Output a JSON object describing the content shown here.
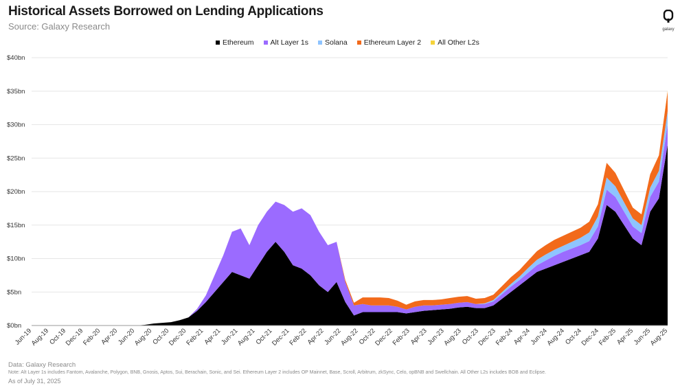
{
  "title": "Historical Assets Borrowed on Lending Applications",
  "subtitle": "Source: Galaxy Research",
  "logo_text": "galaxy",
  "footer": {
    "data_source": "Data: Galaxy Research",
    "note": "Note: Alt Layer 1s includes Fantom, Avalanche, Polygon, BNB, Gnosis, Aptos, Sui, Berachain, Sonic, and Sei. Ethereum Layer 2 includes OP Mainnet, Base, Scroll, Arbitrum, zkSync, Celo, opBNB and Swellchain. All Other L2s includes BOB and Eclipse.",
    "as_of": "As of July 31, 2025"
  },
  "colors": {
    "Ethereum": "#000000",
    "Alt Layer 1s": "#9b6bff",
    "Solana": "#8ec4ff",
    "Ethereum Layer 2": "#f26a1b",
    "All Other L2s": "#f5d33a",
    "grid": "#e6e6e6"
  },
  "chart_data": {
    "type": "area",
    "stacked": true,
    "legend_position": "top-center",
    "grid": true,
    "ylim": [
      0,
      40
    ],
    "y_ticks": [
      "$0bn",
      "$5bn",
      "$10bn",
      "$15bn",
      "$20bn",
      "$25bn",
      "$30bn",
      "$35bn",
      "$40bn"
    ],
    "x_ticks": [
      "Jun-19",
      "Aug-19",
      "Oct-19",
      "Dec-19",
      "Feb-20",
      "Apr-20",
      "Jun-20",
      "Aug-20",
      "Oct-20",
      "Dec-20",
      "Feb-21",
      "Apr-21",
      "Jun-21",
      "Aug-21",
      "Oct-21",
      "Dec-21",
      "Feb-22",
      "Apr-22",
      "Jun-22",
      "Aug-22",
      "Oct-22",
      "Dec-22",
      "Feb-23",
      "Apr-23",
      "Jun-23",
      "Aug-23",
      "Oct-23",
      "Dec-23",
      "Feb-24",
      "Apr-24",
      "Jun-24",
      "Aug-24",
      "Oct-24",
      "Dec-24",
      "Feb-25",
      "Apr-25",
      "Jun-25",
      "Aug-25"
    ],
    "x": [
      "Jun-19",
      "Jul-19",
      "Aug-19",
      "Sep-19",
      "Oct-19",
      "Nov-19",
      "Dec-19",
      "Jan-20",
      "Feb-20",
      "Mar-20",
      "Apr-20",
      "May-20",
      "Jun-20",
      "Jul-20",
      "Aug-20",
      "Sep-20",
      "Oct-20",
      "Nov-20",
      "Dec-20",
      "Jan-21",
      "Feb-21",
      "Mar-21",
      "Apr-21",
      "May-21",
      "Jun-21",
      "Jul-21",
      "Aug-21",
      "Sep-21",
      "Oct-21",
      "Nov-21",
      "Dec-21",
      "Jan-22",
      "Feb-22",
      "Mar-22",
      "Apr-22",
      "May-22",
      "Jun-22",
      "Jul-22",
      "Aug-22",
      "Sep-22",
      "Oct-22",
      "Nov-22",
      "Dec-22",
      "Jan-23",
      "Feb-23",
      "Mar-23",
      "Apr-23",
      "May-23",
      "Jun-23",
      "Jul-23",
      "Aug-23",
      "Sep-23",
      "Oct-23",
      "Nov-23",
      "Dec-23",
      "Jan-24",
      "Feb-24",
      "Mar-24",
      "Apr-24",
      "May-24",
      "Jun-24",
      "Jul-24",
      "Aug-24",
      "Sep-24",
      "Oct-24",
      "Nov-24",
      "Dec-24",
      "Jan-25",
      "Feb-25",
      "Mar-25",
      "Apr-25",
      "May-25",
      "Jun-25",
      "Jul-25"
    ],
    "series": [
      {
        "name": "Ethereum",
        "values": [
          0,
          0,
          0,
          0,
          0,
          0,
          0,
          0,
          0,
          0,
          0,
          0,
          0,
          0.1,
          0.3,
          0.4,
          0.5,
          0.8,
          1.2,
          2.2,
          3.5,
          5,
          6.5,
          8,
          7.5,
          7,
          9,
          11,
          12.5,
          11,
          9,
          8.5,
          7.5,
          6,
          5,
          6.5,
          3.5,
          1.5,
          2,
          2,
          2,
          2,
          2,
          1.8,
          2,
          2.2,
          2.3,
          2.4,
          2.5,
          2.7,
          2.8,
          2.6,
          2.6,
          3,
          4,
          5,
          6,
          7,
          8,
          8.5,
          9,
          9.5,
          10,
          10.5,
          11,
          13,
          18,
          17,
          15,
          13,
          12,
          17,
          19,
          27
        ]
      },
      {
        "name": "Alt Layer 1s",
        "values": [
          0,
          0,
          0,
          0,
          0,
          0,
          0,
          0,
          0,
          0,
          0,
          0,
          0,
          0,
          0,
          0,
          0,
          0,
          0,
          0.3,
          1,
          2.5,
          4,
          6,
          7,
          5,
          6,
          6,
          6,
          7,
          8,
          9,
          9,
          8,
          7,
          6,
          3,
          1.5,
          1.2,
          1,
          1,
          1,
          0.8,
          0.6,
          0.8,
          0.8,
          0.7,
          0.7,
          0.7,
          0.7,
          0.7,
          0.6,
          0.6,
          0.6,
          0.7,
          0.8,
          0.8,
          0.9,
          1,
          1.2,
          1.4,
          1.5,
          1.5,
          1.5,
          1.6,
          1.8,
          2.3,
          2.2,
          2,
          1.8,
          1.8,
          2.2,
          2.5,
          3
        ]
      },
      {
        "name": "Solana",
        "values": [
          0,
          0,
          0,
          0,
          0,
          0,
          0,
          0,
          0,
          0,
          0,
          0,
          0,
          0,
          0,
          0,
          0,
          0,
          0,
          0,
          0,
          0,
          0,
          0,
          0,
          0,
          0,
          0,
          0,
          0,
          0,
          0,
          0,
          0,
          0,
          0,
          0,
          0,
          0,
          0,
          0,
          0,
          0,
          0,
          0,
          0,
          0,
          0,
          0,
          0,
          0,
          0,
          0.1,
          0.2,
          0.3,
          0.4,
          0.5,
          0.7,
          0.8,
          0.9,
          0.9,
          0.9,
          1,
          1.1,
          1.3,
          1.5,
          1.8,
          1.6,
          1.4,
          1.2,
          1.2,
          1.4,
          1.6,
          2
        ]
      },
      {
        "name": "Ethereum Layer 2",
        "values": [
          0,
          0,
          0,
          0,
          0,
          0,
          0,
          0,
          0,
          0,
          0,
          0,
          0,
          0,
          0,
          0,
          0,
          0,
          0,
          0,
          0,
          0,
          0,
          0,
          0,
          0,
          0,
          0,
          0,
          0,
          0,
          0,
          0,
          0,
          0,
          0,
          0.3,
          0.4,
          1,
          1.2,
          1.2,
          1.1,
          0.9,
          0.7,
          0.8,
          0.8,
          0.8,
          0.8,
          0.9,
          0.9,
          0.9,
          0.8,
          0.8,
          0.8,
          0.9,
          1,
          1,
          1.1,
          1.3,
          1.4,
          1.5,
          1.5,
          1.5,
          1.5,
          1.6,
          1.8,
          2.2,
          2,
          1.8,
          1.6,
          1.6,
          2,
          2.3,
          3
        ]
      },
      {
        "name": "All Other L2s",
        "values": [
          0,
          0,
          0,
          0,
          0,
          0,
          0,
          0,
          0,
          0,
          0,
          0,
          0,
          0,
          0,
          0,
          0,
          0,
          0,
          0,
          0,
          0,
          0,
          0,
          0,
          0,
          0,
          0,
          0,
          0,
          0,
          0,
          0,
          0,
          0,
          0,
          0,
          0,
          0,
          0,
          0,
          0,
          0,
          0,
          0,
          0,
          0,
          0,
          0,
          0,
          0,
          0,
          0,
          0,
          0,
          0,
          0,
          0,
          0,
          0,
          0,
          0,
          0,
          0,
          0,
          0,
          0,
          0,
          0,
          0,
          0,
          0,
          0,
          0.1
        ]
      }
    ]
  }
}
